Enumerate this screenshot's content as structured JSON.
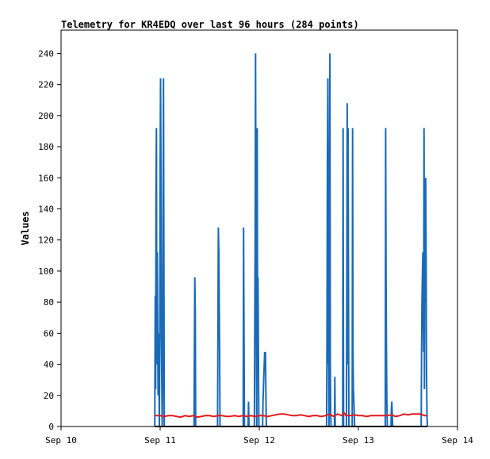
{
  "chart_data": {
    "type": "line",
    "title": "Telemetry for KR4EDQ over last 96 hours (284 points)",
    "xlabel": "",
    "ylabel": "Values",
    "x_unit": "hours since Sep 10 00:00",
    "xlim": [
      0,
      96
    ],
    "ylim": [
      0,
      255
    ],
    "grid": false,
    "legend": "none",
    "x_ticks": [
      {
        "label": "Sep 10",
        "x": 0
      },
      {
        "label": "Sep 11",
        "x": 24
      },
      {
        "label": "Sep 12",
        "x": 48
      },
      {
        "label": "Sep 13",
        "x": 72
      },
      {
        "label": "Sep 14",
        "x": 96
      }
    ],
    "y_ticks": [
      0,
      20,
      40,
      60,
      80,
      100,
      120,
      140,
      160,
      180,
      200,
      220,
      240
    ],
    "series": [
      {
        "color": "#1a6ab8",
        "x": [
          22.7,
          22.8,
          22.9,
          23.0,
          23.1,
          23.2,
          23.3,
          23.5,
          23.6,
          23.8,
          23.9,
          24.0,
          24.1,
          24.2,
          24.3,
          24.5,
          24.6,
          24.8,
          24.9,
          25.0,
          25.1,
          25.2,
          25.3,
          25.4,
          25.5,
          25.6,
          25.7,
          25.8,
          25.9,
          26.0,
          26.1,
          32.2,
          32.3,
          32.4,
          32.5,
          32.6,
          37.9,
          38.0,
          38.1,
          38.2,
          38.3,
          38.4,
          38.5,
          44.1,
          44.2,
          44.3,
          44.4,
          45.3,
          45.4,
          45.5,
          46.8,
          46.9,
          47.0,
          47.1,
          47.2,
          47.3,
          47.4,
          47.5,
          47.6,
          47.7,
          47.8,
          47.9,
          48.0,
          48.8,
          48.9,
          49.0,
          49.1,
          49.2,
          49.3,
          49.4,
          49.5,
          49.6,
          49.7,
          49.8,
          64.3,
          64.4,
          64.5,
          64.6,
          64.7,
          64.8,
          64.9,
          65.0,
          65.1,
          65.2,
          65.3,
          65.4,
          66.2,
          66.3,
          66.4,
          68.2,
          68.3,
          68.4,
          69.1,
          69.2,
          69.3,
          69.4,
          69.5,
          69.6,
          69.7,
          69.8,
          70.5,
          70.6,
          70.7,
          70.8,
          70.9,
          71.0,
          71.1,
          78.5,
          78.6,
          78.7,
          78.8,
          78.9,
          79.0,
          79.9,
          80.0,
          80.1,
          80.2,
          80.3,
          87.2,
          87.3,
          87.4,
          87.5,
          87.6,
          87.7,
          87.8,
          87.9,
          88.0,
          88.1,
          88.2,
          88.3,
          88.4,
          88.5,
          88.6,
          88.7
        ],
        "values": [
          0,
          84,
          24,
          156,
          192,
          40,
          112,
          20,
          60,
          0,
          56,
          168,
          224,
          168,
          56,
          0,
          24,
          224,
          112,
          0,
          0,
          0,
          0,
          0,
          0,
          0,
          0,
          0,
          0,
          0,
          0,
          0,
          48,
          96,
          72,
          0,
          0,
          64,
          128,
          112,
          80,
          48,
          0,
          0,
          128,
          64,
          0,
          0,
          16,
          0,
          0,
          64,
          120,
          240,
          120,
          32,
          0,
          192,
          48,
          96,
          40,
          0,
          0,
          0,
          16,
          24,
          32,
          40,
          48,
          40,
          48,
          24,
          0,
          0,
          0,
          56,
          168,
          224,
          40,
          48,
          0,
          160,
          240,
          40,
          8,
          0,
          0,
          32,
          0,
          0,
          192,
          0,
          0,
          88,
          208,
          40,
          192,
          96,
          0,
          0,
          0,
          192,
          48,
          24,
          16,
          8,
          0,
          0,
          192,
          96,
          48,
          16,
          0,
          0,
          12,
          16,
          8,
          0,
          0,
          48,
          80,
          96,
          112,
          72,
          48,
          192,
          24,
          152,
          80,
          160,
          112,
          40,
          8,
          0
        ]
      },
      {
        "color": "#e31a1c",
        "x": [
          22.7,
          24,
          25,
          26,
          27,
          28,
          29,
          30,
          31,
          32,
          33,
          34,
          35,
          36,
          37,
          38,
          39,
          40,
          41,
          42,
          43,
          44,
          45,
          46,
          47,
          48,
          49,
          50,
          51,
          52,
          53,
          54,
          55,
          56,
          57,
          58,
          59,
          60,
          61,
          62,
          63,
          64,
          65,
          66,
          67,
          68,
          68.5,
          69,
          70,
          71,
          72,
          73,
          74,
          75,
          76,
          77,
          78,
          79,
          80,
          81,
          82,
          83,
          84,
          85,
          86,
          87,
          88,
          88.7
        ],
        "values": [
          7,
          7,
          6.5,
          7,
          7,
          6.5,
          6,
          7,
          6.5,
          7,
          6,
          6.5,
          7,
          7,
          6.5,
          7,
          7,
          6.5,
          6.5,
          7,
          6.5,
          7,
          6.5,
          7,
          6.5,
          7,
          7,
          6.5,
          7,
          7.5,
          8,
          8,
          7.5,
          7,
          7,
          7.5,
          7,
          6.5,
          7,
          7,
          6.5,
          7,
          8,
          6.5,
          8,
          7,
          9,
          7,
          7,
          7.5,
          7,
          7,
          6.5,
          7,
          7,
          7,
          7,
          7,
          7.5,
          6.5,
          7,
          8,
          7.5,
          8,
          8,
          8,
          7,
          7
        ]
      },
      {
        "color": "#000000",
        "x": [
          22.7,
          88.7
        ],
        "values": [
          0,
          0
        ]
      }
    ]
  }
}
